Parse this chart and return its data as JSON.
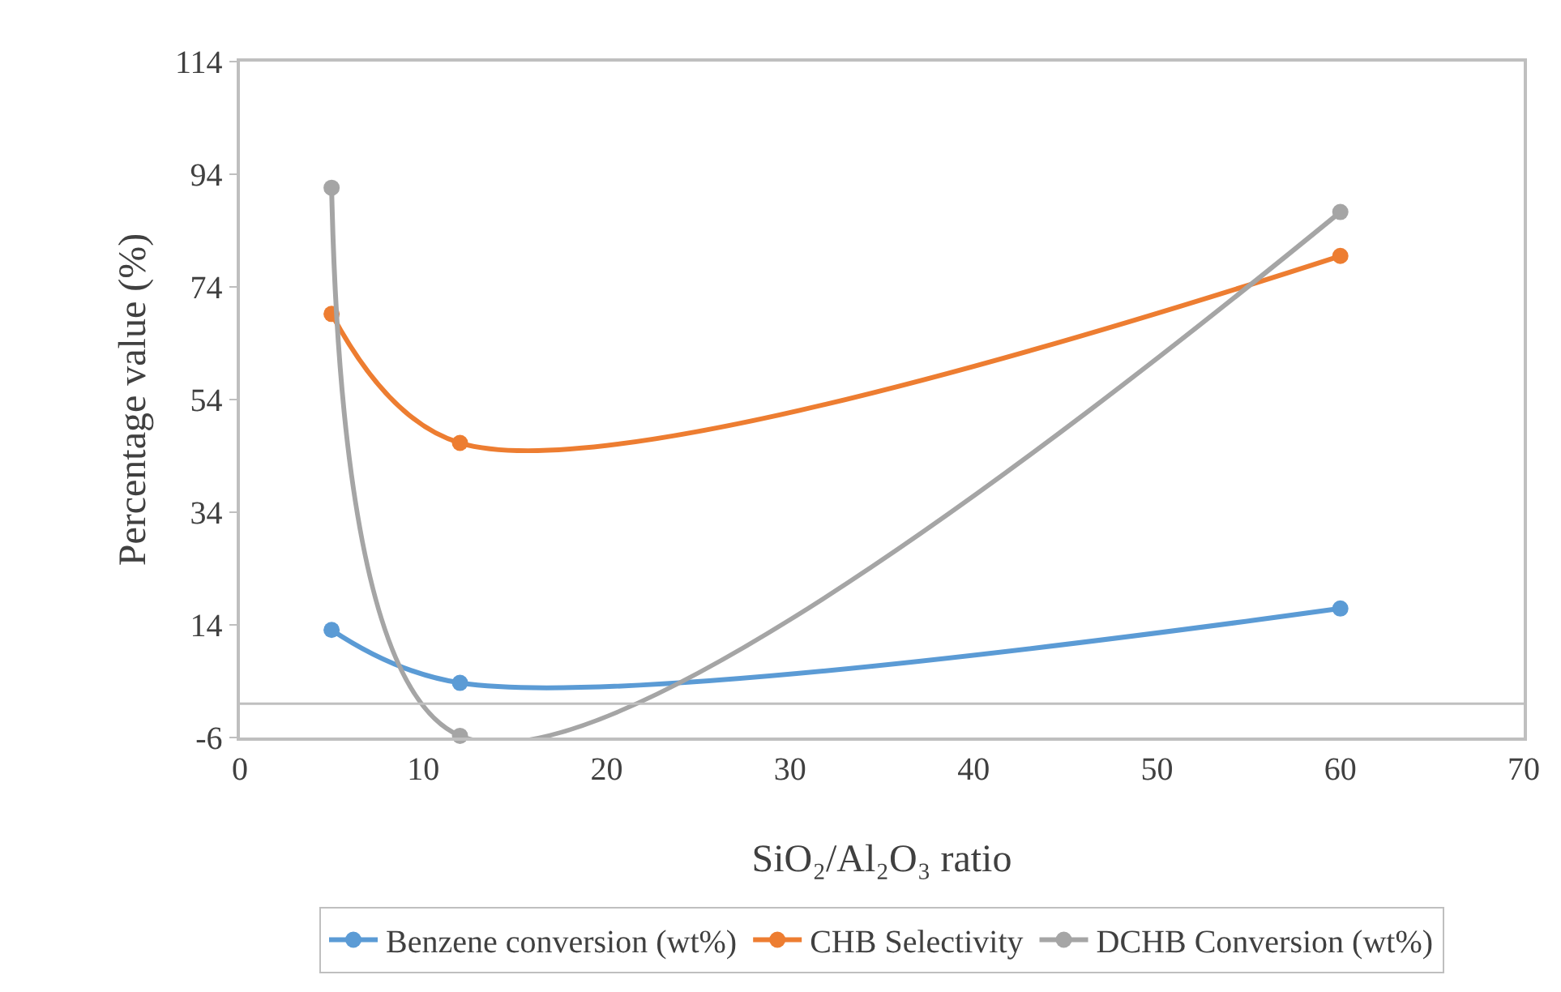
{
  "chart_data": {
    "type": "line",
    "xlabel": "SiO₂/Al₂O₃ ratio",
    "ylabel": "Percentage value (%)",
    "x": [
      5,
      12,
      60
    ],
    "series": [
      {
        "name": "Benzene conversion (wt%)",
        "color": "#5b9bd5",
        "values": [
          13.1,
          3.7,
          16.9
        ]
      },
      {
        "name": "CHB Selectivity",
        "color": "#ed7d31",
        "values": [
          69.2,
          46.3,
          79.5
        ]
      },
      {
        "name": "DCHB Conversion (wt%)",
        "color": "#a5a5a5",
        "values": [
          91.6,
          -5.7,
          87.3
        ]
      }
    ],
    "xlim": [
      0,
      70
    ],
    "xticks": [
      0,
      10,
      20,
      30,
      40,
      50,
      60,
      70
    ],
    "ylim": [
      -6,
      114
    ],
    "yticks": [
      -6,
      14,
      34,
      54,
      74,
      94,
      114
    ],
    "ref_lines": [
      {
        "axis": "y",
        "value": 0,
        "color": "#bfbfbf"
      }
    ],
    "grid": false,
    "legend": "bottom",
    "marker": "circle",
    "line_style": "solid"
  }
}
